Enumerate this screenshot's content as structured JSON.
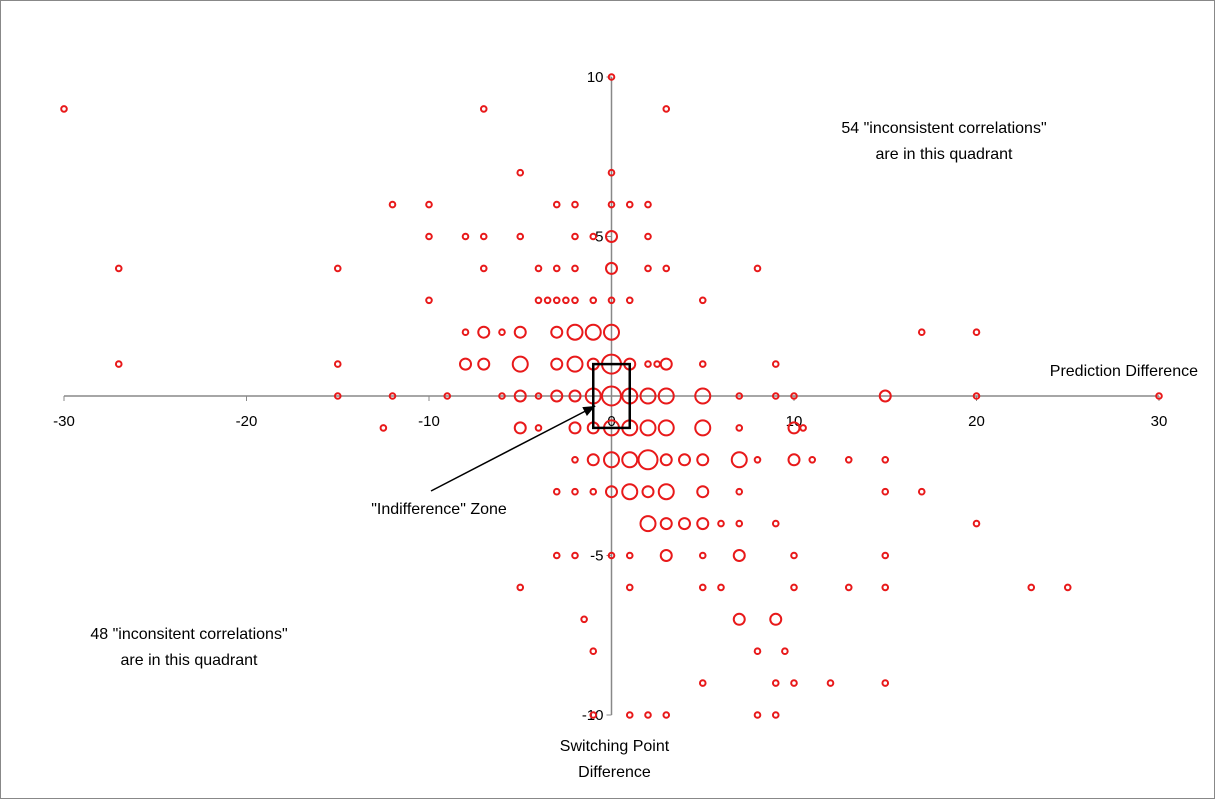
{
  "chart_data": {
    "type": "scatter",
    "title": "",
    "xlabel": "Prediction Difference",
    "ylabel": [
      "Switching Point",
      "Difference"
    ],
    "xlim": [
      -30,
      30
    ],
    "ylim": [
      -10,
      10
    ],
    "x_ticks": [
      "-30",
      "-20",
      "-10",
      "0",
      "10",
      "20",
      "30"
    ],
    "y_ticks": [
      "10",
      "5",
      "-5",
      "-10"
    ],
    "grid": false,
    "marker": "open-circle",
    "marker_color": "#e8191a",
    "zone": {
      "x": [
        -1,
        1
      ],
      "y": [
        -1,
        1
      ]
    },
    "annotations": {
      "indifference_zone": "\"Indifference\" Zone",
      "upper_right_quadrant": [
        "54 \"inconsistent correlations\"",
        "are in this quadrant"
      ],
      "lower_left_quadrant": [
        "48 \"inconsitent correlations\"",
        "are in this quadrant"
      ]
    },
    "points": [
      {
        "x": -30,
        "y": 9,
        "s": 1
      },
      {
        "x": -7,
        "y": 9,
        "s": 1
      },
      {
        "x": 0,
        "y": 10,
        "s": 1
      },
      {
        "x": 3,
        "y": 9,
        "s": 1
      },
      {
        "x": -5,
        "y": 7,
        "s": 1
      },
      {
        "x": 0,
        "y": 7,
        "s": 1
      },
      {
        "x": -12,
        "y": 6,
        "s": 1
      },
      {
        "x": -10,
        "y": 6,
        "s": 1
      },
      {
        "x": -3,
        "y": 6,
        "s": 1
      },
      {
        "x": -2,
        "y": 6,
        "s": 1
      },
      {
        "x": 0,
        "y": 6,
        "s": 1
      },
      {
        "x": 1,
        "y": 6,
        "s": 1
      },
      {
        "x": 2,
        "y": 6,
        "s": 1
      },
      {
        "x": -10,
        "y": 5,
        "s": 1
      },
      {
        "x": -8,
        "y": 5,
        "s": 1
      },
      {
        "x": -7,
        "y": 5,
        "s": 1
      },
      {
        "x": -5,
        "y": 5,
        "s": 1
      },
      {
        "x": -2,
        "y": 5,
        "s": 1
      },
      {
        "x": -1,
        "y": 5,
        "s": 1
      },
      {
        "x": 0,
        "y": 5,
        "s": 2
      },
      {
        "x": 2,
        "y": 5,
        "s": 1
      },
      {
        "x": -27,
        "y": 4,
        "s": 1
      },
      {
        "x": -15,
        "y": 4,
        "s": 1
      },
      {
        "x": -7,
        "y": 4,
        "s": 1
      },
      {
        "x": -4,
        "y": 4,
        "s": 1
      },
      {
        "x": -3,
        "y": 4,
        "s": 1
      },
      {
        "x": -2,
        "y": 4,
        "s": 1
      },
      {
        "x": 0,
        "y": 4,
        "s": 2
      },
      {
        "x": 2,
        "y": 4,
        "s": 1
      },
      {
        "x": 3,
        "y": 4,
        "s": 1
      },
      {
        "x": 8,
        "y": 4,
        "s": 1
      },
      {
        "x": -10,
        "y": 3,
        "s": 1
      },
      {
        "x": -4,
        "y": 3,
        "s": 1
      },
      {
        "x": -3.5,
        "y": 3,
        "s": 1
      },
      {
        "x": -3,
        "y": 3,
        "s": 1
      },
      {
        "x": -2.5,
        "y": 3,
        "s": 1
      },
      {
        "x": -2,
        "y": 3,
        "s": 1
      },
      {
        "x": -1,
        "y": 3,
        "s": 1
      },
      {
        "x": 0,
        "y": 3,
        "s": 1
      },
      {
        "x": 1,
        "y": 3,
        "s": 1
      },
      {
        "x": 5,
        "y": 3,
        "s": 1
      },
      {
        "x": -8,
        "y": 2,
        "s": 1
      },
      {
        "x": -7,
        "y": 2,
        "s": 2
      },
      {
        "x": -6,
        "y": 2,
        "s": 1
      },
      {
        "x": -5,
        "y": 2,
        "s": 2
      },
      {
        "x": -3,
        "y": 2,
        "s": 2
      },
      {
        "x": -2,
        "y": 2,
        "s": 3
      },
      {
        "x": -1,
        "y": 2,
        "s": 3
      },
      {
        "x": 0,
        "y": 2,
        "s": 3
      },
      {
        "x": 17,
        "y": 2,
        "s": 1
      },
      {
        "x": 20,
        "y": 2,
        "s": 1
      },
      {
        "x": -27,
        "y": 1,
        "s": 1
      },
      {
        "x": -15,
        "y": 1,
        "s": 1
      },
      {
        "x": -8,
        "y": 1,
        "s": 2
      },
      {
        "x": -7,
        "y": 1,
        "s": 2
      },
      {
        "x": -5,
        "y": 1,
        "s": 3
      },
      {
        "x": -3,
        "y": 1,
        "s": 2
      },
      {
        "x": -2,
        "y": 1,
        "s": 3
      },
      {
        "x": -1,
        "y": 1,
        "s": 2
      },
      {
        "x": 0,
        "y": 1,
        "s": 4
      },
      {
        "x": 1,
        "y": 1,
        "s": 2
      },
      {
        "x": 2,
        "y": 1,
        "s": 1
      },
      {
        "x": 2.5,
        "y": 1,
        "s": 1
      },
      {
        "x": 3,
        "y": 1,
        "s": 2
      },
      {
        "x": 5,
        "y": 1,
        "s": 1
      },
      {
        "x": 9,
        "y": 1,
        "s": 1
      },
      {
        "x": -15,
        "y": 0,
        "s": 1
      },
      {
        "x": -12,
        "y": 0,
        "s": 1
      },
      {
        "x": -9,
        "y": 0,
        "s": 1
      },
      {
        "x": -6,
        "y": 0,
        "s": 1
      },
      {
        "x": -5,
        "y": 0,
        "s": 2
      },
      {
        "x": -4,
        "y": 0,
        "s": 1
      },
      {
        "x": -3,
        "y": 0,
        "s": 2
      },
      {
        "x": -2,
        "y": 0,
        "s": 2
      },
      {
        "x": -1,
        "y": 0,
        "s": 3
      },
      {
        "x": 0,
        "y": 0,
        "s": 4
      },
      {
        "x": 1,
        "y": 0,
        "s": 3
      },
      {
        "x": 2,
        "y": 0,
        "s": 3
      },
      {
        "x": 3,
        "y": 0,
        "s": 3
      },
      {
        "x": 5,
        "y": 0,
        "s": 3
      },
      {
        "x": 7,
        "y": 0,
        "s": 1
      },
      {
        "x": 9,
        "y": 0,
        "s": 1
      },
      {
        "x": 10,
        "y": 0,
        "s": 1
      },
      {
        "x": 15,
        "y": 0,
        "s": 2
      },
      {
        "x": 20,
        "y": 0,
        "s": 1
      },
      {
        "x": 30,
        "y": 0,
        "s": 1
      },
      {
        "x": -12.5,
        "y": -1,
        "s": 1
      },
      {
        "x": -5,
        "y": -1,
        "s": 2
      },
      {
        "x": -4,
        "y": -1,
        "s": 1
      },
      {
        "x": -2,
        "y": -1,
        "s": 2
      },
      {
        "x": -1,
        "y": -1,
        "s": 2
      },
      {
        "x": 0,
        "y": -1,
        "s": 3
      },
      {
        "x": 1,
        "y": -1,
        "s": 3
      },
      {
        "x": 2,
        "y": -1,
        "s": 3
      },
      {
        "x": 3,
        "y": -1,
        "s": 3
      },
      {
        "x": 5,
        "y": -1,
        "s": 3
      },
      {
        "x": 7,
        "y": -1,
        "s": 1
      },
      {
        "x": 10,
        "y": -1,
        "s": 2
      },
      {
        "x": 10.5,
        "y": -1,
        "s": 1
      },
      {
        "x": -2,
        "y": -2,
        "s": 1
      },
      {
        "x": -1,
        "y": -2,
        "s": 2
      },
      {
        "x": 0,
        "y": -2,
        "s": 3
      },
      {
        "x": 1,
        "y": -2,
        "s": 3
      },
      {
        "x": 2,
        "y": -2,
        "s": 4
      },
      {
        "x": 3,
        "y": -2,
        "s": 2
      },
      {
        "x": 4,
        "y": -2,
        "s": 2
      },
      {
        "x": 5,
        "y": -2,
        "s": 2
      },
      {
        "x": 7,
        "y": -2,
        "s": 3
      },
      {
        "x": 8,
        "y": -2,
        "s": 1
      },
      {
        "x": 10,
        "y": -2,
        "s": 2
      },
      {
        "x": 11,
        "y": -2,
        "s": 1
      },
      {
        "x": 13,
        "y": -2,
        "s": 1
      },
      {
        "x": 15,
        "y": -2,
        "s": 1
      },
      {
        "x": -3,
        "y": -3,
        "s": 1
      },
      {
        "x": -2,
        "y": -3,
        "s": 1
      },
      {
        "x": -1,
        "y": -3,
        "s": 1
      },
      {
        "x": 0,
        "y": -3,
        "s": 2
      },
      {
        "x": 1,
        "y": -3,
        "s": 3
      },
      {
        "x": 2,
        "y": -3,
        "s": 2
      },
      {
        "x": 3,
        "y": -3,
        "s": 3
      },
      {
        "x": 5,
        "y": -3,
        "s": 2
      },
      {
        "x": 7,
        "y": -3,
        "s": 1
      },
      {
        "x": 15,
        "y": -3,
        "s": 1
      },
      {
        "x": 17,
        "y": -3,
        "s": 1
      },
      {
        "x": 2,
        "y": -4,
        "s": 3
      },
      {
        "x": 3,
        "y": -4,
        "s": 2
      },
      {
        "x": 4,
        "y": -4,
        "s": 2
      },
      {
        "x": 5,
        "y": -4,
        "s": 2
      },
      {
        "x": 6,
        "y": -4,
        "s": 1
      },
      {
        "x": 7,
        "y": -4,
        "s": 1
      },
      {
        "x": 9,
        "y": -4,
        "s": 1
      },
      {
        "x": 20,
        "y": -4,
        "s": 1
      },
      {
        "x": -3,
        "y": -5,
        "s": 1
      },
      {
        "x": -2,
        "y": -5,
        "s": 1
      },
      {
        "x": 0,
        "y": -5,
        "s": 1
      },
      {
        "x": 1,
        "y": -5,
        "s": 1
      },
      {
        "x": 3,
        "y": -5,
        "s": 2
      },
      {
        "x": 5,
        "y": -5,
        "s": 1
      },
      {
        "x": 7,
        "y": -5,
        "s": 2
      },
      {
        "x": 10,
        "y": -5,
        "s": 1
      },
      {
        "x": 15,
        "y": -5,
        "s": 1
      },
      {
        "x": -5,
        "y": -6,
        "s": 1
      },
      {
        "x": 1,
        "y": -6,
        "s": 1
      },
      {
        "x": 5,
        "y": -6,
        "s": 1
      },
      {
        "x": 6,
        "y": -6,
        "s": 1
      },
      {
        "x": 10,
        "y": -6,
        "s": 1
      },
      {
        "x": 13,
        "y": -6,
        "s": 1
      },
      {
        "x": 15,
        "y": -6,
        "s": 1
      },
      {
        "x": 23,
        "y": -6,
        "s": 1
      },
      {
        "x": 25,
        "y": -6,
        "s": 1
      },
      {
        "x": -1.5,
        "y": -7,
        "s": 1
      },
      {
        "x": 7,
        "y": -7,
        "s": 2
      },
      {
        "x": 9,
        "y": -7,
        "s": 2
      },
      {
        "x": -1,
        "y": -8,
        "s": 1
      },
      {
        "x": 8,
        "y": -8,
        "s": 1
      },
      {
        "x": 9.5,
        "y": -8,
        "s": 1
      },
      {
        "x": 5,
        "y": -9,
        "s": 1
      },
      {
        "x": 9,
        "y": -9,
        "s": 1
      },
      {
        "x": 10,
        "y": -9,
        "s": 1
      },
      {
        "x": 12,
        "y": -9,
        "s": 1
      },
      {
        "x": 15,
        "y": -9,
        "s": 1
      },
      {
        "x": -1,
        "y": -10,
        "s": 1
      },
      {
        "x": 1,
        "y": -10,
        "s": 1
      },
      {
        "x": 2,
        "y": -10,
        "s": 1
      },
      {
        "x": 3,
        "y": -10,
        "s": 1
      },
      {
        "x": 8,
        "y": -10,
        "s": 1
      },
      {
        "x": 9,
        "y": -10,
        "s": 1
      }
    ]
  }
}
